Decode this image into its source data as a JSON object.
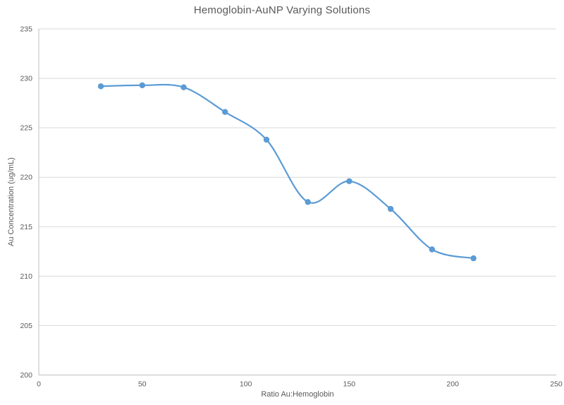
{
  "chart_data": {
    "type": "line",
    "title": "Hemoglobin-AuNP Varying Solutions",
    "xlabel": "Ratio Au:Hemoglobin",
    "ylabel": "Au Concentration (ug/mL)",
    "x": [
      30,
      50,
      70,
      90,
      110,
      130,
      150,
      170,
      190,
      210
    ],
    "y": [
      229.2,
      229.3,
      229.1,
      226.6,
      223.8,
      217.5,
      219.6,
      216.8,
      212.7,
      211.8
    ],
    "series_name": "",
    "xlim": [
      0,
      250
    ],
    "xtick_step": 50,
    "ylim": [
      200,
      235
    ],
    "ytick_step": 5,
    "smooth": true,
    "markers": true,
    "grid": "horizontal",
    "legend": "none",
    "colors": {
      "series": "#5B9BD5",
      "gridline": "#D9D9D9",
      "axis_line": "#BFBFBF",
      "tick_label": "#595959",
      "title": "#595959",
      "background": "#FFFFFF"
    }
  }
}
